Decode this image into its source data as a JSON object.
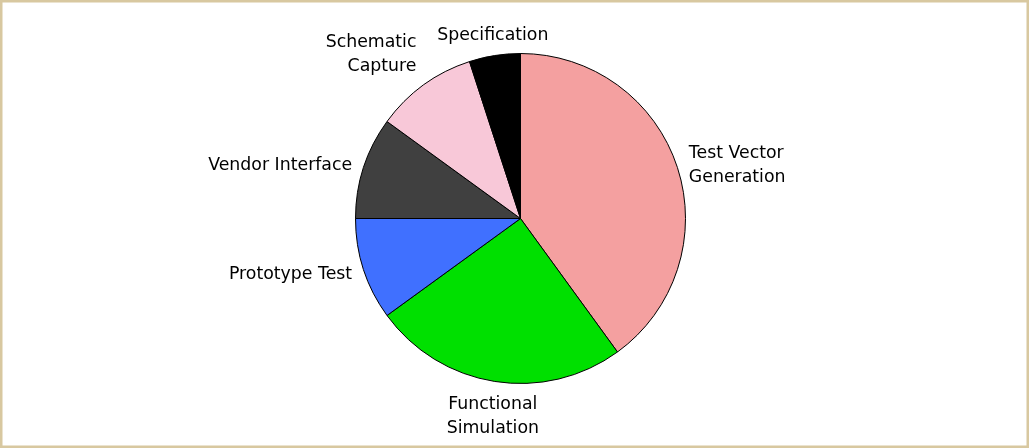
{
  "chart_data": {
    "type": "pie",
    "categories": [
      "Test Vector\nGeneration",
      "Functional\nSimulation",
      "Prototype Test",
      "Vendor Interface",
      "Schematic\nCapture",
      "Specification"
    ],
    "values": [
      40,
      25,
      10,
      10,
      10,
      5
    ],
    "colors": [
      "#f4a0a0",
      "#00e000",
      "#4070ff",
      "#404040",
      "#f8c8d8",
      "#000000"
    ]
  }
}
